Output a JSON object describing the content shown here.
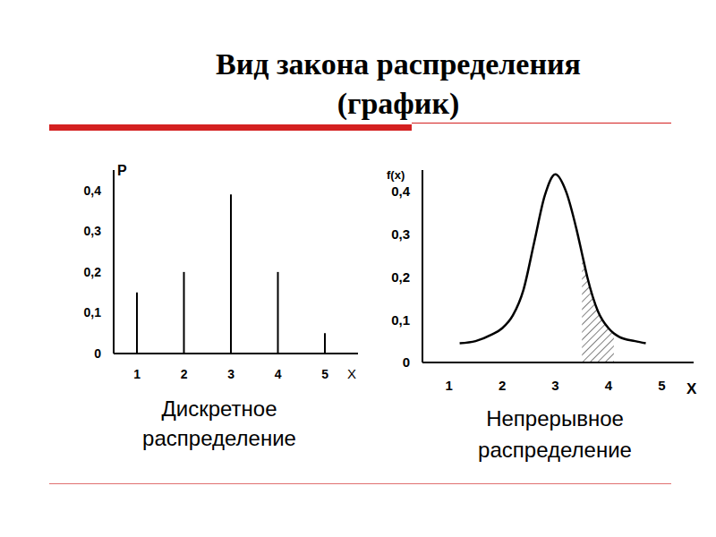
{
  "title": "Вид закона распределения (график)",
  "chart_data": [
    {
      "type": "bar",
      "title": "Дискретное распределение",
      "x": [
        1,
        2,
        3,
        4,
        5
      ],
      "values": [
        0.15,
        0.2,
        0.39,
        0.2,
        0.05
      ],
      "color": "#000000",
      "xlabel": "X",
      "ylabel": "P",
      "xlim": [
        0.5,
        5.7
      ],
      "xticks": [
        1,
        2,
        3,
        4,
        5
      ],
      "ylim": [
        0,
        0.45
      ],
      "yticks": [
        0,
        {
          "value": 0.1,
          "label": "0,1"
        },
        {
          "value": 0.2,
          "label": "0,2"
        },
        {
          "value": 0.3,
          "label": "0,3"
        },
        {
          "value": 0.4,
          "label": "0,4"
        }
      ],
      "grid": false
    },
    {
      "type": "line",
      "title": "Непрерывное распределение",
      "x": [
        1.2,
        1.5,
        1.8,
        2.0,
        2.2,
        2.4,
        2.6,
        2.8,
        3.0,
        3.2,
        3.4,
        3.5,
        3.6,
        3.8,
        4.0,
        4.1,
        4.2,
        4.5,
        4.7
      ],
      "values": [
        0.045,
        0.05,
        0.065,
        0.08,
        0.11,
        0.17,
        0.28,
        0.39,
        0.44,
        0.4,
        0.31,
        0.255,
        0.2,
        0.12,
        0.08,
        0.068,
        0.06,
        0.05,
        0.045
      ],
      "shaded_range": [
        3.5,
        4.1
      ],
      "color": "#000000",
      "xlabel": "X",
      "ylabel": "f(x)",
      "xlim": [
        0.5,
        5.6
      ],
      "xticks": [
        1,
        2,
        3,
        4,
        5
      ],
      "ylim": [
        0,
        0.45
      ],
      "yticks": [
        0,
        {
          "value": 0.1,
          "label": "0,1"
        },
        {
          "value": 0.2,
          "label": "0,2"
        },
        {
          "value": 0.3,
          "label": "0,3"
        },
        {
          "value": 0.4,
          "label": "0,4"
        }
      ],
      "grid": false
    }
  ]
}
